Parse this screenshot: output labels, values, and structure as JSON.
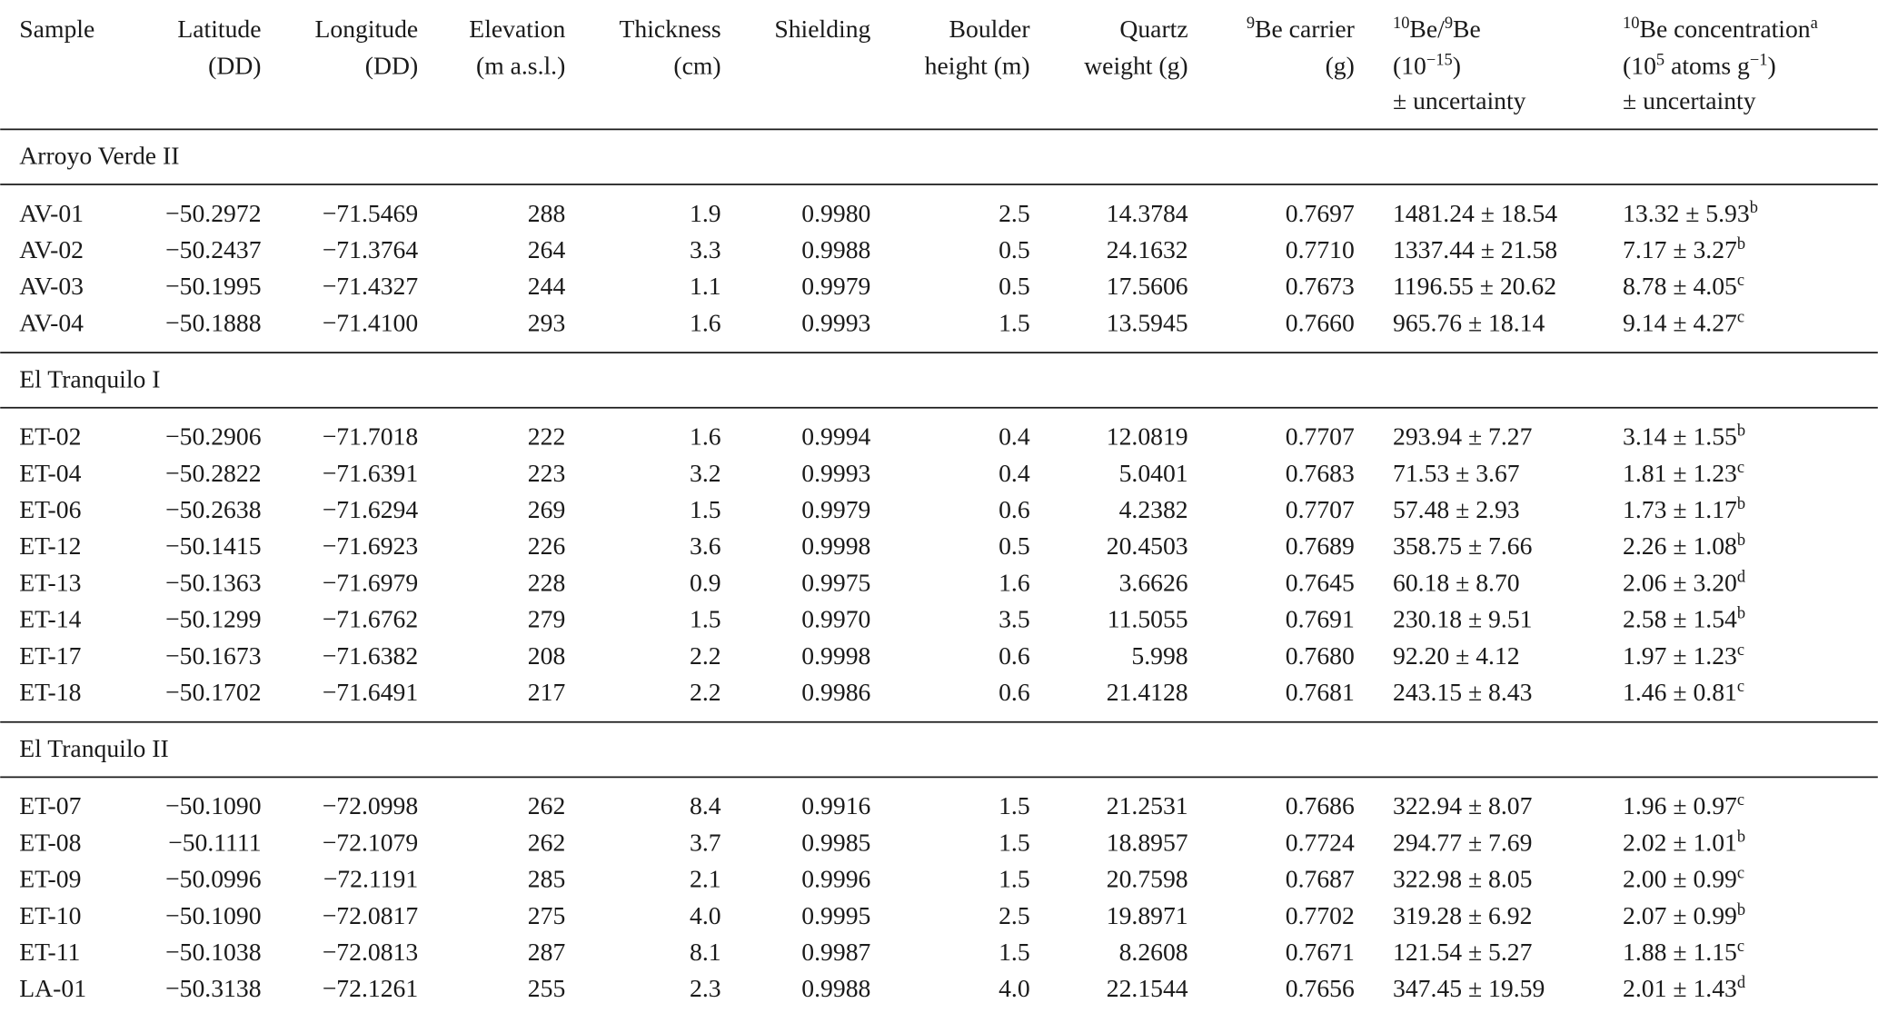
{
  "table": {
    "columns": [
      {
        "lines": [
          [
            {
              "text": "Sample"
            }
          ]
        ]
      },
      {
        "lines": [
          [
            {
              "text": "Latitude"
            }
          ],
          [
            {
              "text": "(DD)"
            }
          ]
        ]
      },
      {
        "lines": [
          [
            {
              "text": "Longitude"
            }
          ],
          [
            {
              "text": "(DD)"
            }
          ]
        ]
      },
      {
        "lines": [
          [
            {
              "text": "Elevation"
            }
          ],
          [
            {
              "text": "(m a.s.l.)"
            }
          ]
        ]
      },
      {
        "lines": [
          [
            {
              "text": "Thickness"
            }
          ],
          [
            {
              "text": "(cm)"
            }
          ]
        ]
      },
      {
        "lines": [
          [
            {
              "text": "Shielding"
            }
          ]
        ]
      },
      {
        "lines": [
          [
            {
              "text": "Boulder"
            }
          ],
          [
            {
              "text": "height (m)"
            }
          ]
        ]
      },
      {
        "lines": [
          [
            {
              "text": "Quartz"
            }
          ],
          [
            {
              "text": "weight (g)"
            }
          ]
        ]
      },
      {
        "lines": [
          [
            {
              "sup": "9"
            },
            {
              "text": "Be carrier"
            }
          ],
          [
            {
              "text": "(g)"
            }
          ]
        ]
      },
      {
        "lines": [
          [
            {
              "sup": "10"
            },
            {
              "text": "Be/"
            },
            {
              "sup": "9"
            },
            {
              "text": "Be"
            }
          ],
          [
            {
              "text": "(10"
            },
            {
              "sup": "−15"
            },
            {
              "text": ")"
            }
          ],
          [
            {
              "text": "± uncertainty"
            }
          ]
        ]
      },
      {
        "lines": [
          [
            {
              "sup": "10"
            },
            {
              "text": "Be concentration"
            },
            {
              "sup": "a"
            }
          ],
          [
            {
              "text": "(10"
            },
            {
              "sup": "5"
            },
            {
              "text": " atoms g"
            },
            {
              "sup": "−1"
            },
            {
              "text": ")"
            }
          ],
          [
            {
              "text": "± uncertainty"
            }
          ]
        ]
      }
    ],
    "groups": [
      {
        "name": "Arroyo Verde II",
        "rows": [
          [
            "AV-01",
            "−50.2972",
            "−71.5469",
            "288",
            "1.9",
            "0.9980",
            "2.5",
            "14.3784",
            "0.7697",
            "1481.24 ± 18.54",
            {
              "text": "13.32 ± 5.93",
              "note": "b"
            }
          ],
          [
            "AV-02",
            "−50.2437",
            "−71.3764",
            "264",
            "3.3",
            "0.9988",
            "0.5",
            "24.1632",
            "0.7710",
            "1337.44 ± 21.58",
            {
              "text": "7.17 ± 3.27",
              "note": "b"
            }
          ],
          [
            "AV-03",
            "−50.1995",
            "−71.4327",
            "244",
            "1.1",
            "0.9979",
            "0.5",
            "17.5606",
            "0.7673",
            "1196.55 ± 20.62",
            {
              "text": "8.78 ± 4.05",
              "note": "c"
            }
          ],
          [
            "AV-04",
            "−50.1888",
            "−71.4100",
            "293",
            "1.6",
            "0.9993",
            "1.5",
            "13.5945",
            "0.7660",
            "965.76 ± 18.14",
            {
              "text": "9.14 ± 4.27",
              "note": "c"
            }
          ]
        ]
      },
      {
        "name": "El Tranquilo I",
        "rows": [
          [
            "ET-02",
            "−50.2906",
            "−71.7018",
            "222",
            "1.6",
            "0.9994",
            "0.4",
            "12.0819",
            "0.7707",
            "293.94 ± 7.27",
            {
              "text": "3.14 ± 1.55",
              "note": "b"
            }
          ],
          [
            "ET-04",
            "−50.2822",
            "−71.6391",
            "223",
            "3.2",
            "0.9993",
            "0.4",
            "5.0401",
            "0.7683",
            "71.53 ± 3.67",
            {
              "text": "1.81 ± 1.23",
              "note": "c"
            }
          ],
          [
            "ET-06",
            "−50.2638",
            "−71.6294",
            "269",
            "1.5",
            "0.9979",
            "0.6",
            "4.2382",
            "0.7707",
            "57.48 ± 2.93",
            {
              "text": "1.73 ± 1.17",
              "note": "b"
            }
          ],
          [
            "ET-12",
            "−50.1415",
            "−71.6923",
            "226",
            "3.6",
            "0.9998",
            "0.5",
            "20.4503",
            "0.7689",
            "358.75 ± 7.66",
            {
              "text": "2.26 ± 1.08",
              "note": "b"
            }
          ],
          [
            "ET-13",
            "−50.1363",
            "−71.6979",
            "228",
            "0.9",
            "0.9975",
            "1.6",
            "3.6626",
            "0.7645",
            "60.18 ± 8.70",
            {
              "text": "2.06 ± 3.20",
              "note": "d"
            }
          ],
          [
            "ET-14",
            "−50.1299",
            "−71.6762",
            "279",
            "1.5",
            "0.9970",
            "3.5",
            "11.5055",
            "0.7691",
            "230.18 ± 9.51",
            {
              "text": "2.58 ± 1.54",
              "note": "b"
            }
          ],
          [
            "ET-17",
            "−50.1673",
            "−71.6382",
            "208",
            "2.2",
            "0.9998",
            "0.6",
            "5.998",
            "0.7680",
            "92.20 ± 4.12",
            {
              "text": "1.97 ± 1.23",
              "note": "c"
            }
          ],
          [
            "ET-18",
            "−50.1702",
            "−71.6491",
            "217",
            "2.2",
            "0.9986",
            "0.6",
            "21.4128",
            "0.7681",
            "243.15 ± 8.43",
            {
              "text": "1.46 ± 0.81",
              "note": "c"
            }
          ]
        ]
      },
      {
        "name": "El Tranquilo II",
        "rows": [
          [
            "ET-07",
            "−50.1090",
            "−72.0998",
            "262",
            "8.4",
            "0.9916",
            "1.5",
            "21.2531",
            "0.7686",
            "322.94 ± 8.07",
            {
              "text": "1.96 ± 0.97",
              "note": "c"
            }
          ],
          [
            "ET-08",
            "−50.1111",
            "−72.1079",
            "262",
            "3.7",
            "0.9985",
            "1.5",
            "18.8957",
            "0.7724",
            "294.77 ± 7.69",
            {
              "text": "2.02 ± 1.01",
              "note": "b"
            }
          ],
          [
            "ET-09",
            "−50.0996",
            "−72.1191",
            "285",
            "2.1",
            "0.9996",
            "1.5",
            "20.7598",
            "0.7687",
            "322.98 ± 8.05",
            {
              "text": "2.00 ± 0.99",
              "note": "c"
            }
          ],
          [
            "ET-10",
            "−50.1090",
            "−72.0817",
            "275",
            "4.0",
            "0.9995",
            "2.5",
            "19.8971",
            "0.7702",
            "319.28 ± 6.92",
            {
              "text": "2.07 ± 0.99",
              "note": "b"
            }
          ],
          [
            "ET-11",
            "−50.1038",
            "−72.0813",
            "287",
            "8.1",
            "0.9987",
            "1.5",
            "8.2608",
            "0.7671",
            "121.54 ± 5.27",
            {
              "text": "1.88 ± 1.15",
              "note": "c"
            }
          ],
          [
            "LA-01",
            "−50.3138",
            "−72.1261",
            "255",
            "2.3",
            "0.9988",
            "4.0",
            "22.1544",
            "0.7656",
            "347.45 ± 19.59",
            {
              "text": "2.01 ± 1.43",
              "note": "d"
            }
          ]
        ]
      }
    ]
  }
}
